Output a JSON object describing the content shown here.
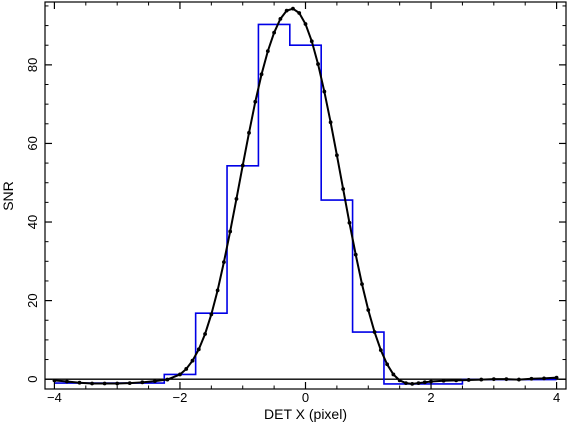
{
  "chart_data": {
    "type": "line",
    "title": "",
    "xlabel": "DET X (pixel)",
    "ylabel": "SNR",
    "xlim": [
      -4.15,
      4.15
    ],
    "ylim": [
      -2.5,
      96
    ],
    "x_ticks": [
      -4,
      -2,
      0,
      2,
      4
    ],
    "y_ticks": [
      0,
      20,
      40,
      60,
      80
    ],
    "zero_line": 0,
    "grid": false,
    "legend": "none",
    "series": [
      {
        "kind": "step",
        "color": "#0000e6",
        "edges": [
          -4.0,
          -2.25,
          -1.75,
          -1.25,
          -0.75,
          -0.25,
          0.25,
          0.75,
          1.25,
          2.5,
          4.0
        ],
        "values": [
          -1.0,
          1.2,
          16.8,
          54.3,
          90.3,
          85.0,
          45.6,
          12.0,
          -1.2,
          -0.1
        ]
      },
      {
        "kind": "line-markers",
        "color": "#000000",
        "x": [
          -4.0,
          -3.8,
          -3.6,
          -3.4,
          -3.2,
          -3.0,
          -2.8,
          -2.6,
          -2.4,
          -2.2,
          -2.0,
          -1.9,
          -1.8,
          -1.7,
          -1.6,
          -1.5,
          -1.4,
          -1.3,
          -1.2,
          -1.1,
          -1.0,
          -0.9,
          -0.8,
          -0.7,
          -0.6,
          -0.5,
          -0.4,
          -0.3,
          -0.2,
          -0.1,
          0.0,
          0.1,
          0.2,
          0.3,
          0.4,
          0.5,
          0.6,
          0.7,
          0.8,
          0.9,
          1.0,
          1.1,
          1.2,
          1.3,
          1.4,
          1.5,
          1.6,
          1.7,
          1.8,
          1.9,
          2.0,
          2.2,
          2.4,
          2.6,
          2.8,
          3.0,
          3.2,
          3.4,
          3.6,
          3.8,
          4.0
        ],
        "y": [
          -0.3,
          -0.6,
          -0.9,
          -1.1,
          -1.1,
          -1.1,
          -1.0,
          -0.8,
          -0.5,
          -0.1,
          1.2,
          2.6,
          4.7,
          7.6,
          11.5,
          16.5,
          22.6,
          29.8,
          37.6,
          45.9,
          54.4,
          62.7,
          70.6,
          77.6,
          83.5,
          88.2,
          91.7,
          93.8,
          94.3,
          93.2,
          90.4,
          86.0,
          80.2,
          73.2,
          65.4,
          57.0,
          48.4,
          39.8,
          31.7,
          24.2,
          17.6,
          12.0,
          7.4,
          3.8,
          1.2,
          -0.3,
          -1.0,
          -1.2,
          -1.0,
          -0.8,
          -0.6,
          -0.4,
          -0.3,
          -0.2,
          -0.1,
          0.0,
          0.0,
          -0.1,
          0.1,
          0.2,
          0.4
        ]
      }
    ]
  }
}
